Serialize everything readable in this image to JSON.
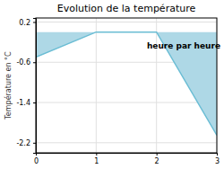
{
  "chart_data": {
    "type": "area",
    "title": "Evolution de la température",
    "ylabel": "Température en °C",
    "annotations": [
      {
        "text": "heure par heure",
        "x": 2.45,
        "y": -0.22
      }
    ],
    "x": [
      0,
      1,
      2,
      3
    ],
    "values": [
      -0.5,
      0.0,
      0.0,
      -2.05
    ],
    "colors": [
      "#aed8e6",
      "#6bbdd4"
    ],
    "xlim": [
      0.0,
      3.0
    ],
    "ylim": [
      -2.4,
      0.28
    ],
    "xticks": [
      0,
      1,
      2,
      3
    ],
    "yticks": [
      0.2,
      -0.6,
      -1.4,
      -2.2
    ],
    "grid": true
  }
}
